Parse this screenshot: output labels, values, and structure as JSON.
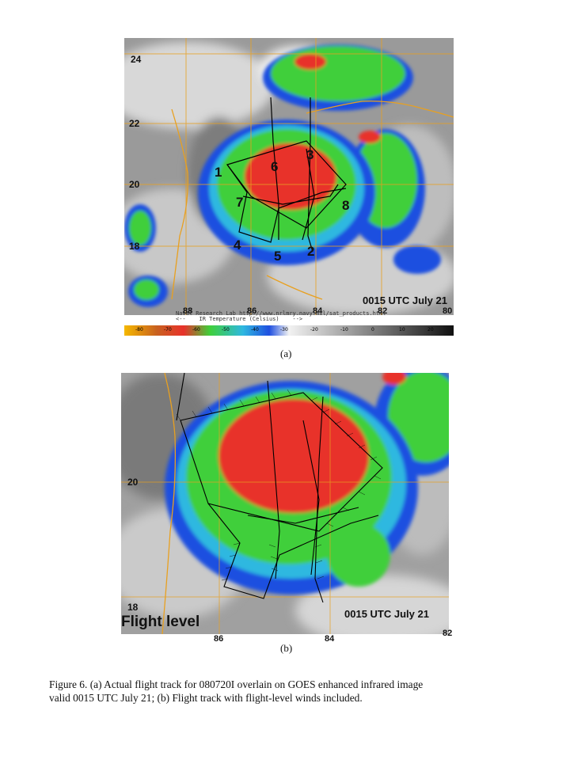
{
  "panel_a": {
    "latitude_labels": [
      "24",
      "22",
      "20",
      "18"
    ],
    "longitude_labels": [
      "88",
      "86",
      "84",
      "82",
      "80"
    ],
    "waypoints": [
      "1",
      "2",
      "3",
      "4",
      "5",
      "6",
      "7",
      "8"
    ],
    "timestamp": "0015 UTC July 21",
    "credit_line1": "Naval Research Lab http://www.nrlmry.navy.mil/sat_products.html",
    "credit_line2": "<--    IR Temperature (Celsius)    -->",
    "scale_ticks": [
      "-80",
      "-70",
      "-60",
      "-50",
      "-40",
      "-30",
      "-20",
      "-10",
      "0",
      "10",
      "20"
    ],
    "sublabel": "(a)"
  },
  "panel_b": {
    "latitude_labels": [
      "20",
      "18"
    ],
    "longitude_labels": [
      "86",
      "84",
      "82"
    ],
    "flight_level_label": "Flight level",
    "timestamp": "0015 UTC July 21",
    "sublabel": "(b)"
  },
  "caption": {
    "line1": "Figure 6.  (a) Actual flight track for 080720I overlain on GOES enhanced infrared image",
    "line2": "valid 0015 UTC July 21; (b) Flight track with flight-level winds included."
  },
  "colors": {
    "cold_red": "#e8312a",
    "green": "#3fcf3a",
    "blue": "#1f4fe0",
    "cloud_gray": "#a8a8a8",
    "gridline": "#e8a020"
  }
}
